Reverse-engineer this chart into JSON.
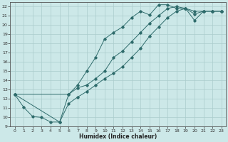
{
  "xlabel": "Humidex (Indice chaleur)",
  "bg_color": "#cce8e8",
  "line_color": "#2e6b6b",
  "grid_color": "#aacccc",
  "xlim": [
    -0.5,
    23.5
  ],
  "ylim": [
    9,
    22.5
  ],
  "xticks": [
    0,
    1,
    2,
    3,
    4,
    5,
    6,
    7,
    8,
    9,
    10,
    11,
    12,
    13,
    14,
    15,
    16,
    17,
    18,
    19,
    20,
    21,
    22,
    23
  ],
  "yticks": [
    9,
    10,
    11,
    12,
    13,
    14,
    15,
    16,
    17,
    18,
    19,
    20,
    21,
    22
  ],
  "line1_x": [
    0,
    1,
    2,
    3,
    4,
    5,
    6,
    7,
    8,
    9,
    10,
    11,
    12,
    13,
    14,
    15,
    16,
    17,
    18,
    19,
    20,
    21,
    22,
    23
  ],
  "line1_y": [
    12.5,
    11.1,
    10.1,
    10.0,
    9.5,
    9.5,
    12.5,
    13.5,
    15.0,
    16.5,
    18.5,
    19.2,
    19.8,
    20.8,
    21.5,
    21.1,
    22.2,
    22.2,
    21.8,
    21.8,
    20.5,
    21.5,
    21.5,
    21.5
  ],
  "line2_x": [
    0,
    6,
    7,
    8,
    9,
    10,
    11,
    12,
    13,
    14,
    15,
    16,
    17,
    18,
    19,
    20,
    21,
    22,
    23
  ],
  "line2_y": [
    12.5,
    12.5,
    13.2,
    13.5,
    14.2,
    15.0,
    16.5,
    17.2,
    18.2,
    19.2,
    20.2,
    21.0,
    21.8,
    22.0,
    21.8,
    21.2,
    21.5,
    21.5,
    21.5
  ],
  "line3_x": [
    0,
    5,
    6,
    7,
    8,
    9,
    10,
    11,
    12,
    13,
    14,
    15,
    16,
    17,
    18,
    19,
    20,
    21,
    22,
    23
  ],
  "line3_y": [
    12.5,
    9.5,
    11.5,
    12.2,
    12.8,
    13.5,
    14.2,
    14.8,
    15.5,
    16.5,
    17.5,
    18.8,
    19.8,
    20.8,
    21.5,
    21.8,
    21.5,
    21.5,
    21.5,
    21.5
  ]
}
